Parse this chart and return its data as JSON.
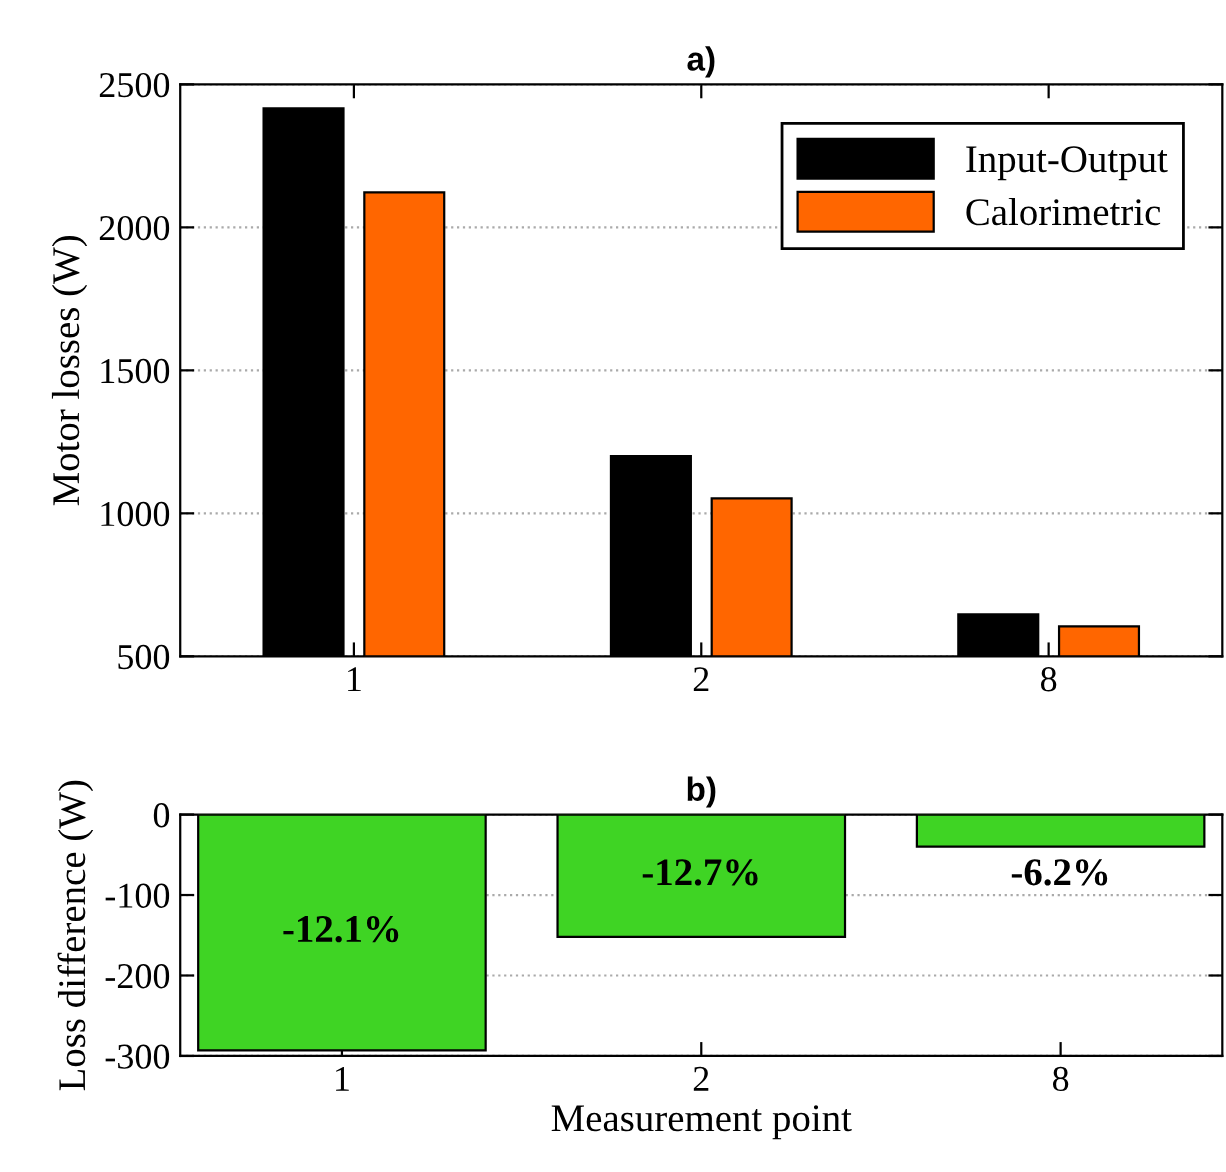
{
  "chart_data": [
    {
      "type": "bar",
      "title": "a)",
      "ylabel": "Motor losses (W)",
      "categories": [
        "1",
        "2",
        "8"
      ],
      "series": [
        {
          "name": "Input-Output",
          "color": "#000000",
          "values": [
            2416,
            1200,
            647
          ]
        },
        {
          "name": "Calorimetric",
          "color": "#ff6600",
          "values": [
            2122,
            1052,
            605
          ]
        }
      ],
      "ylim": [
        500,
        2500
      ],
      "yticks": [
        500,
        1000,
        1500,
        2000,
        2500
      ],
      "grid": "y",
      "legend": "top right"
    },
    {
      "type": "bar",
      "title": "b)",
      "ylabel": "Loss difference (W)",
      "xlabel": "Measurement point",
      "categories": [
        "1",
        "2",
        "8"
      ],
      "series": [
        {
          "color": "#3fd424",
          "values": [
            -293,
            -152,
            -40
          ]
        }
      ],
      "annotations": [
        {
          "text": "-12.1%",
          "x": "1",
          "y": -293
        },
        {
          "text": "-12.7%",
          "x": "2",
          "y": -152
        },
        {
          "text": "-6.2%",
          "x": "8",
          "y": -40
        }
      ],
      "ylim": [
        -300,
        0
      ],
      "yticks": [
        -300,
        -200,
        -100,
        0
      ],
      "grid": "y"
    }
  ]
}
